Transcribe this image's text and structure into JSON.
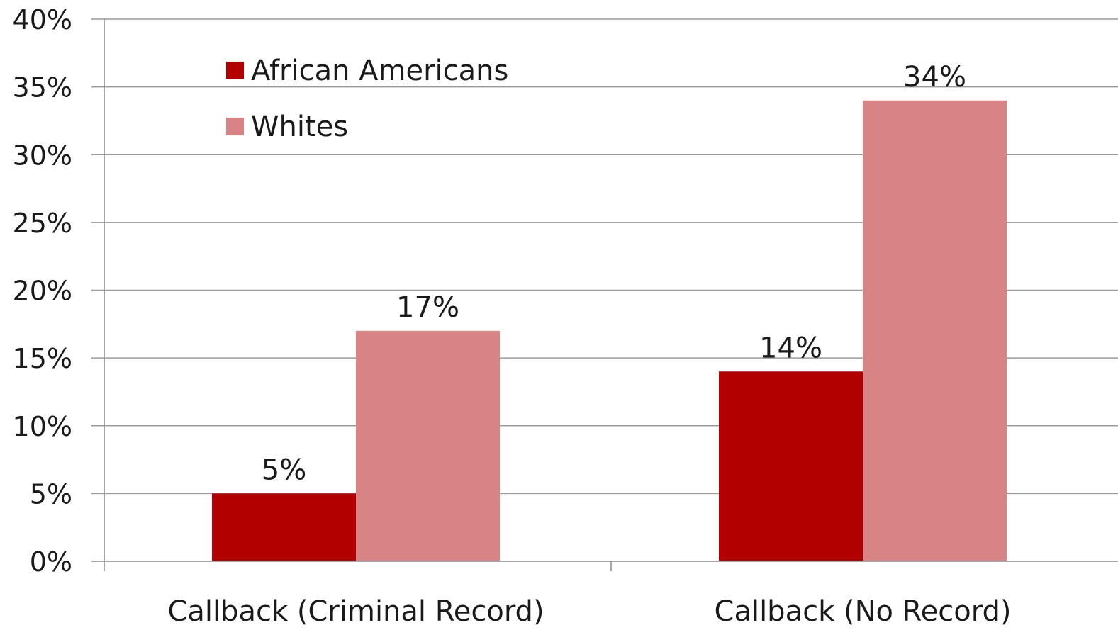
{
  "chart_data": {
    "type": "bar",
    "categories": [
      "Callback (Criminal Record)",
      "Callback (No Record)"
    ],
    "series": [
      {
        "name": "African Americans",
        "values": [
          5,
          14
        ],
        "color": "#b20000"
      },
      {
        "name": "Whites",
        "values": [
          17,
          34
        ],
        "color": "#d88384"
      }
    ],
    "data_labels": [
      [
        "5%",
        "14%"
      ],
      [
        "17%",
        "34%"
      ]
    ],
    "ylim": [
      0,
      40
    ],
    "yticks": [
      0,
      5,
      10,
      15,
      20,
      25,
      30,
      35,
      40
    ],
    "ytick_labels": [
      "0%",
      "5%",
      "10%",
      "15%",
      "20%",
      "25%",
      "30%",
      "35%",
      "40%"
    ],
    "title": "",
    "xlabel": "",
    "ylabel": "",
    "grid": true,
    "legend_position": "top-left"
  }
}
